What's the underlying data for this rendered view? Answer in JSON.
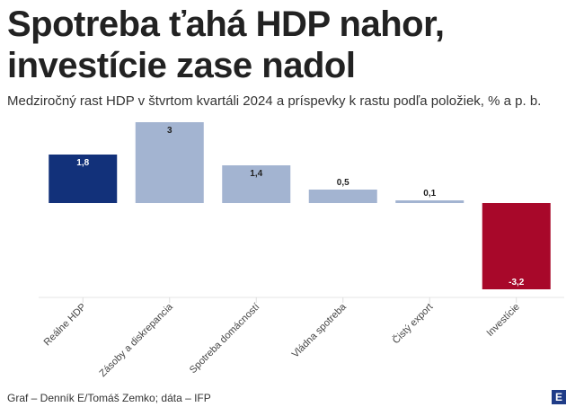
{
  "title_line1": "Spotreba ťahá HDP nahor,",
  "title_line2": "investície zase nadol",
  "subtitle": "Medziročný rast HDP v štvrtom kvartáli 2024 a príspevky k rastu podľa položiek, % a p. b.",
  "source": "Graf – Denník E/Tomáš Zemko; dáta – IFP",
  "logo": "E",
  "chart_data": {
    "type": "bar",
    "categories": [
      "Reálne HDP",
      "Zásoby a diskrepancia",
      "Spotreba domácností",
      "Vládna spotreba",
      "Čistý export",
      "Investície"
    ],
    "values": [
      1.8,
      3,
      1.4,
      0.5,
      0.1,
      -3.2
    ],
    "labels": [
      "1,8",
      "3",
      "1,4",
      "0,5",
      "0,1",
      "-3,2"
    ],
    "colors": [
      "#12317a",
      "#a3b4d1",
      "#a3b4d1",
      "#a3b4d1",
      "#a3b4d1",
      "#a8082a"
    ],
    "ylim": [
      -3.5,
      3
    ]
  }
}
